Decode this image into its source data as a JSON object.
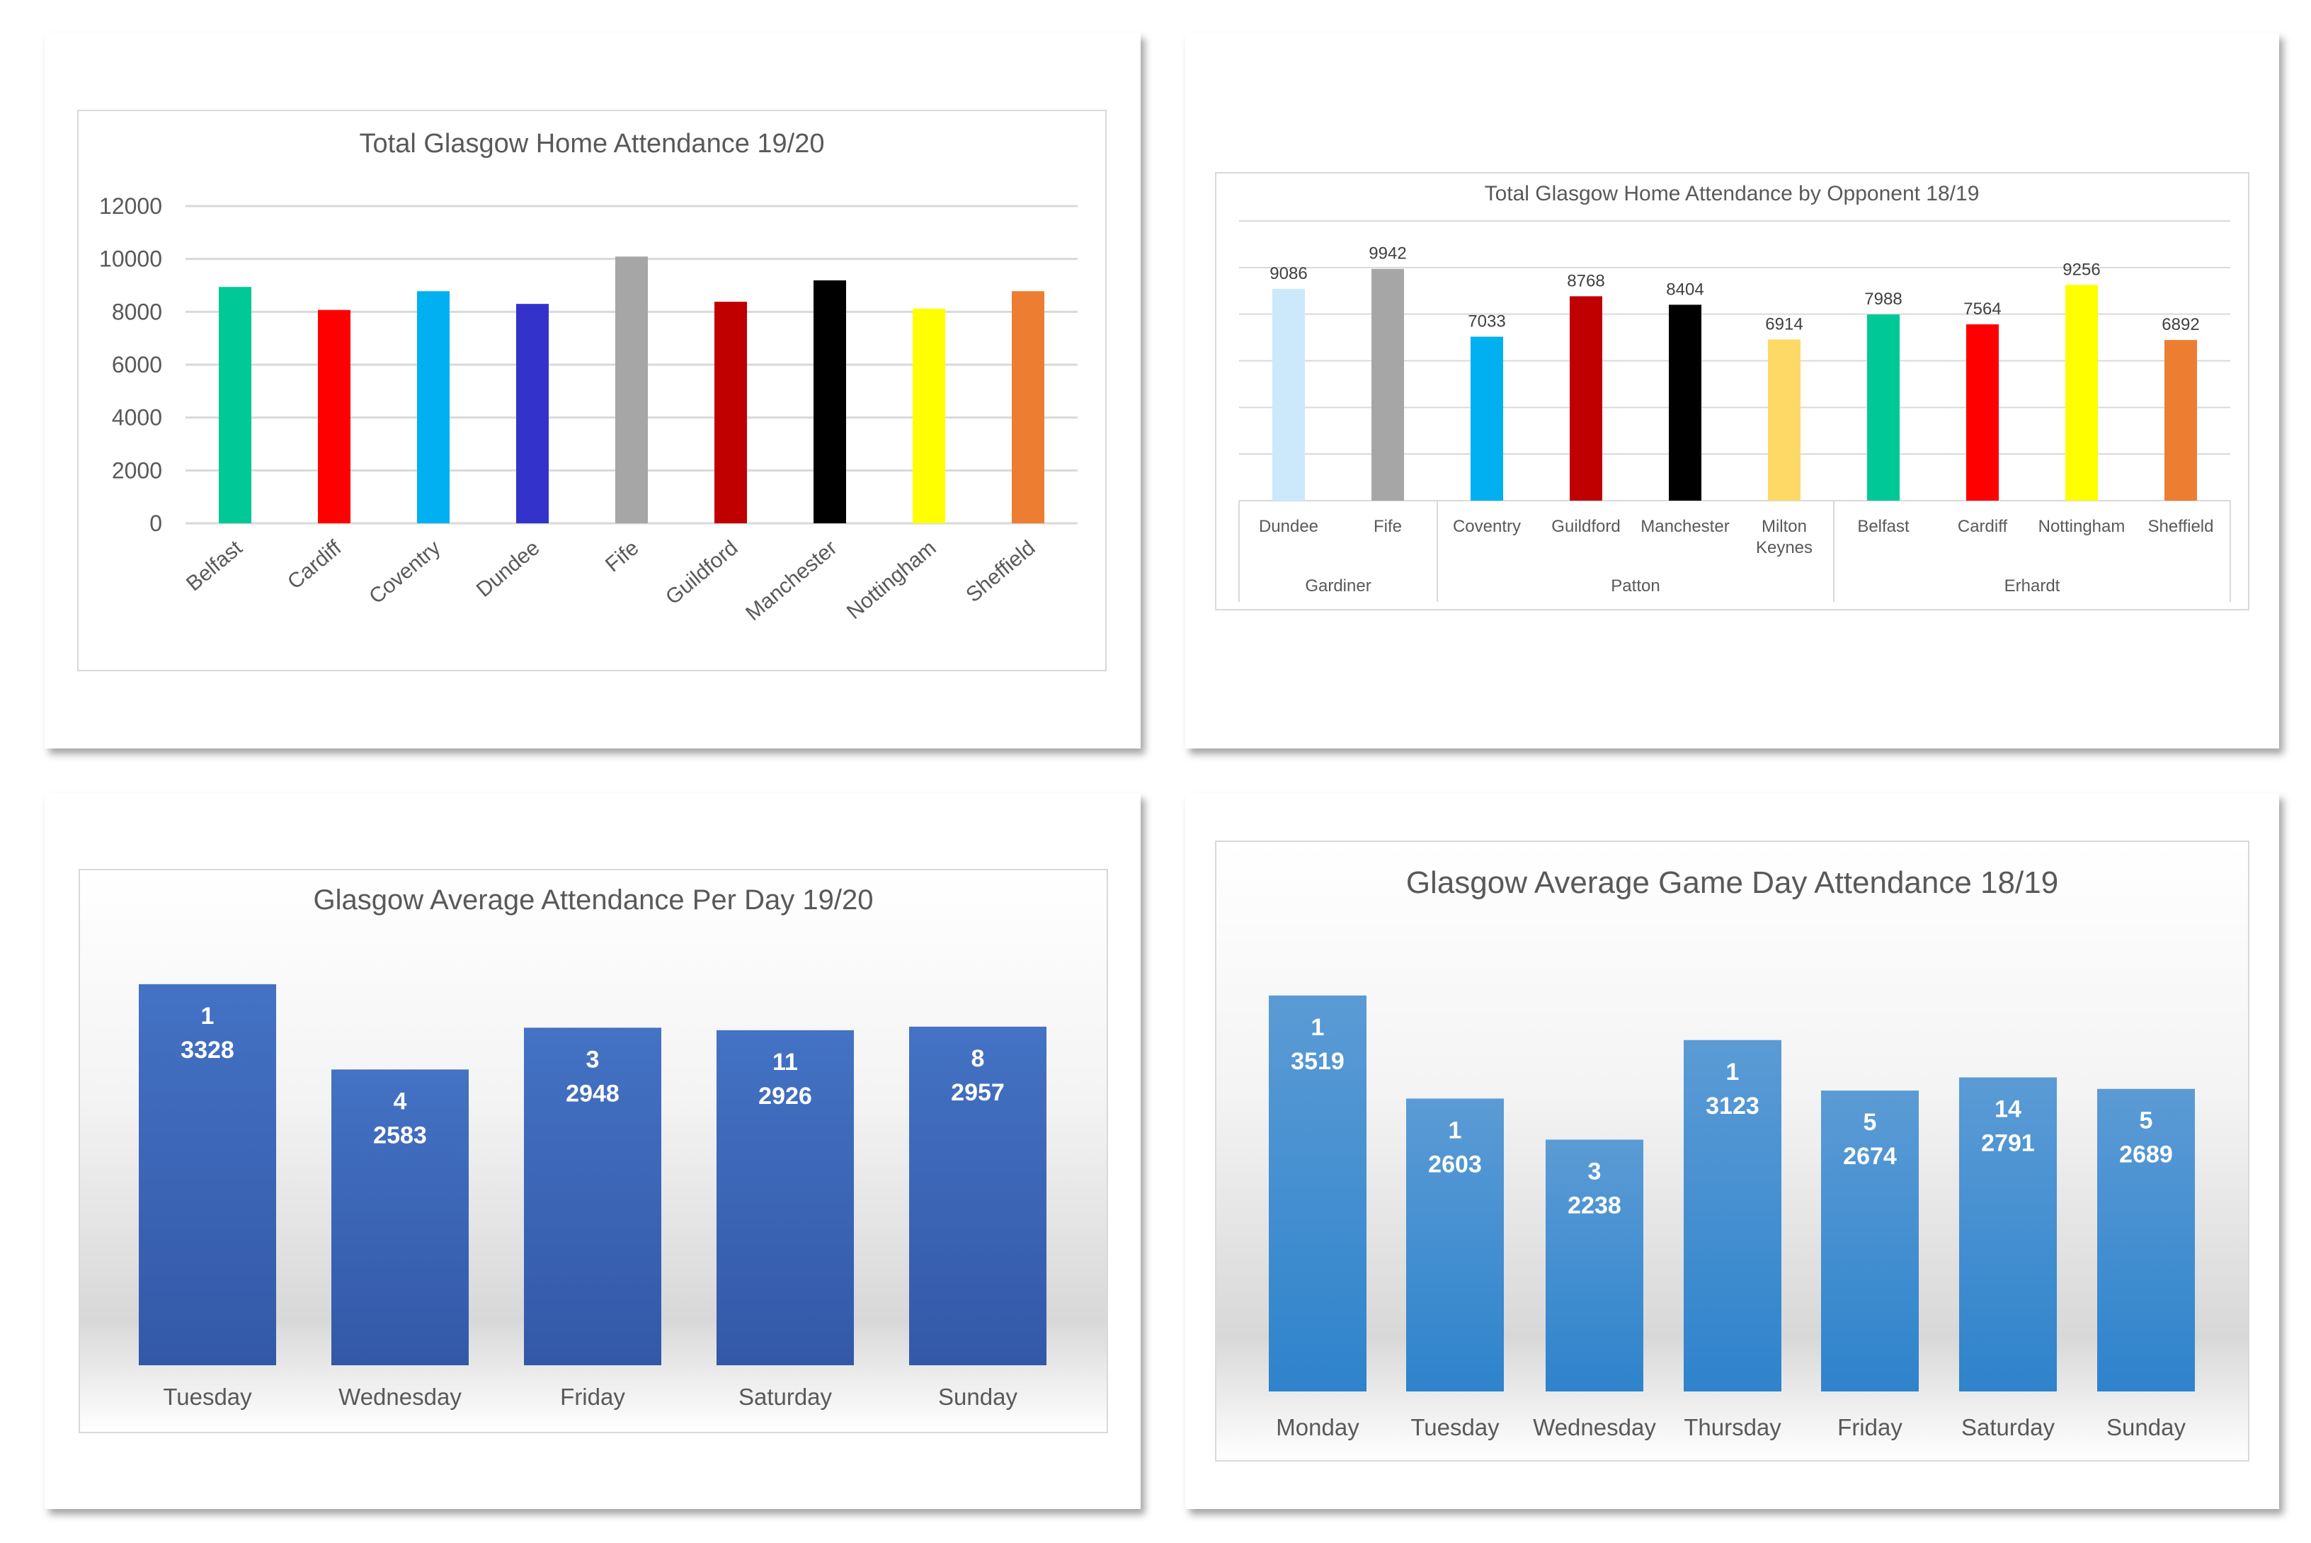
{
  "chart_data": [
    {
      "type": "bar",
      "title": "Total Glasgow Home Attendance 19/20",
      "categories": [
        "Belfast",
        "Cardiff",
        "Coventry",
        "Dundee",
        "Fife",
        "Guildford",
        "Manchester",
        "Nottingham",
        "Sheffield"
      ],
      "values": [
        8940,
        8070,
        8780,
        8300,
        10090,
        8380,
        9190,
        8120,
        8780
      ],
      "colors": [
        "#00c896",
        "#ff0000",
        "#00b0f0",
        "#3333cc",
        "#a6a6a6",
        "#c00000",
        "#000000",
        "#ffff00",
        "#ed7d31"
      ],
      "ylim": [
        0,
        12000
      ],
      "yticks": [
        "0",
        "2000",
        "4000",
        "6000",
        "8000",
        "10000",
        "12000"
      ],
      "grid": true,
      "legend": "none"
    },
    {
      "type": "bar",
      "title": "Total Glasgow Home Attendance by Opponent 18/19",
      "categories": [
        "Dundee",
        "Fife",
        "Coventry",
        "Guildford",
        "Manchester",
        "Milton Keynes",
        "Belfast",
        "Cardiff",
        "Nottingham",
        "Sheffield"
      ],
      "groups": [
        {
          "label": "Gardiner",
          "count": 2
        },
        {
          "label": "Patton",
          "count": 4
        },
        {
          "label": "Erhardt",
          "count": 4
        }
      ],
      "values": [
        9086,
        9942,
        7033,
        8768,
        8404,
        6914,
        7988,
        7564,
        9256,
        6892
      ],
      "data_labels": [
        "9086",
        "9942",
        "7033",
        "8768",
        "8404",
        "6914",
        "7988",
        "7564",
        "9256",
        "6892"
      ],
      "colors": [
        "#cce9fb",
        "#a6a6a6",
        "#00b0f0",
        "#c00000",
        "#000000",
        "#ffd966",
        "#00c896",
        "#ff0000",
        "#ffff00",
        "#ed7d31"
      ],
      "ylim": [
        0,
        12000
      ],
      "grid": true,
      "legend": "none"
    },
    {
      "type": "bar",
      "title": "Glasgow Average Attendance Per Day 19/20",
      "categories": [
        "Tuesday",
        "Wednesday",
        "Friday",
        "Saturday",
        "Sunday"
      ],
      "values": [
        3328,
        2583,
        2948,
        2926,
        2957
      ],
      "counts": [
        "1",
        "4",
        "3",
        "11",
        "8"
      ],
      "data_labels": [
        "3328",
        "2583",
        "2948",
        "2926",
        "2957"
      ],
      "color": "#4472c4",
      "legend": "none"
    },
    {
      "type": "bar",
      "title": "Glasgow Average Game Day Attendance 18/19",
      "categories": [
        "Monday",
        "Tuesday",
        "Wednesday",
        "Thursday",
        "Friday",
        "Saturday",
        "Sunday"
      ],
      "values": [
        3519,
        2603,
        2238,
        3123,
        2674,
        2791,
        2689
      ],
      "counts": [
        "1",
        "1",
        "3",
        "1",
        "5",
        "14",
        "5"
      ],
      "data_labels": [
        "3519",
        "2603",
        "2238",
        "3123",
        "2674",
        "2791",
        "2689"
      ],
      "color": "#5b9bd5",
      "legend": "none"
    }
  ]
}
